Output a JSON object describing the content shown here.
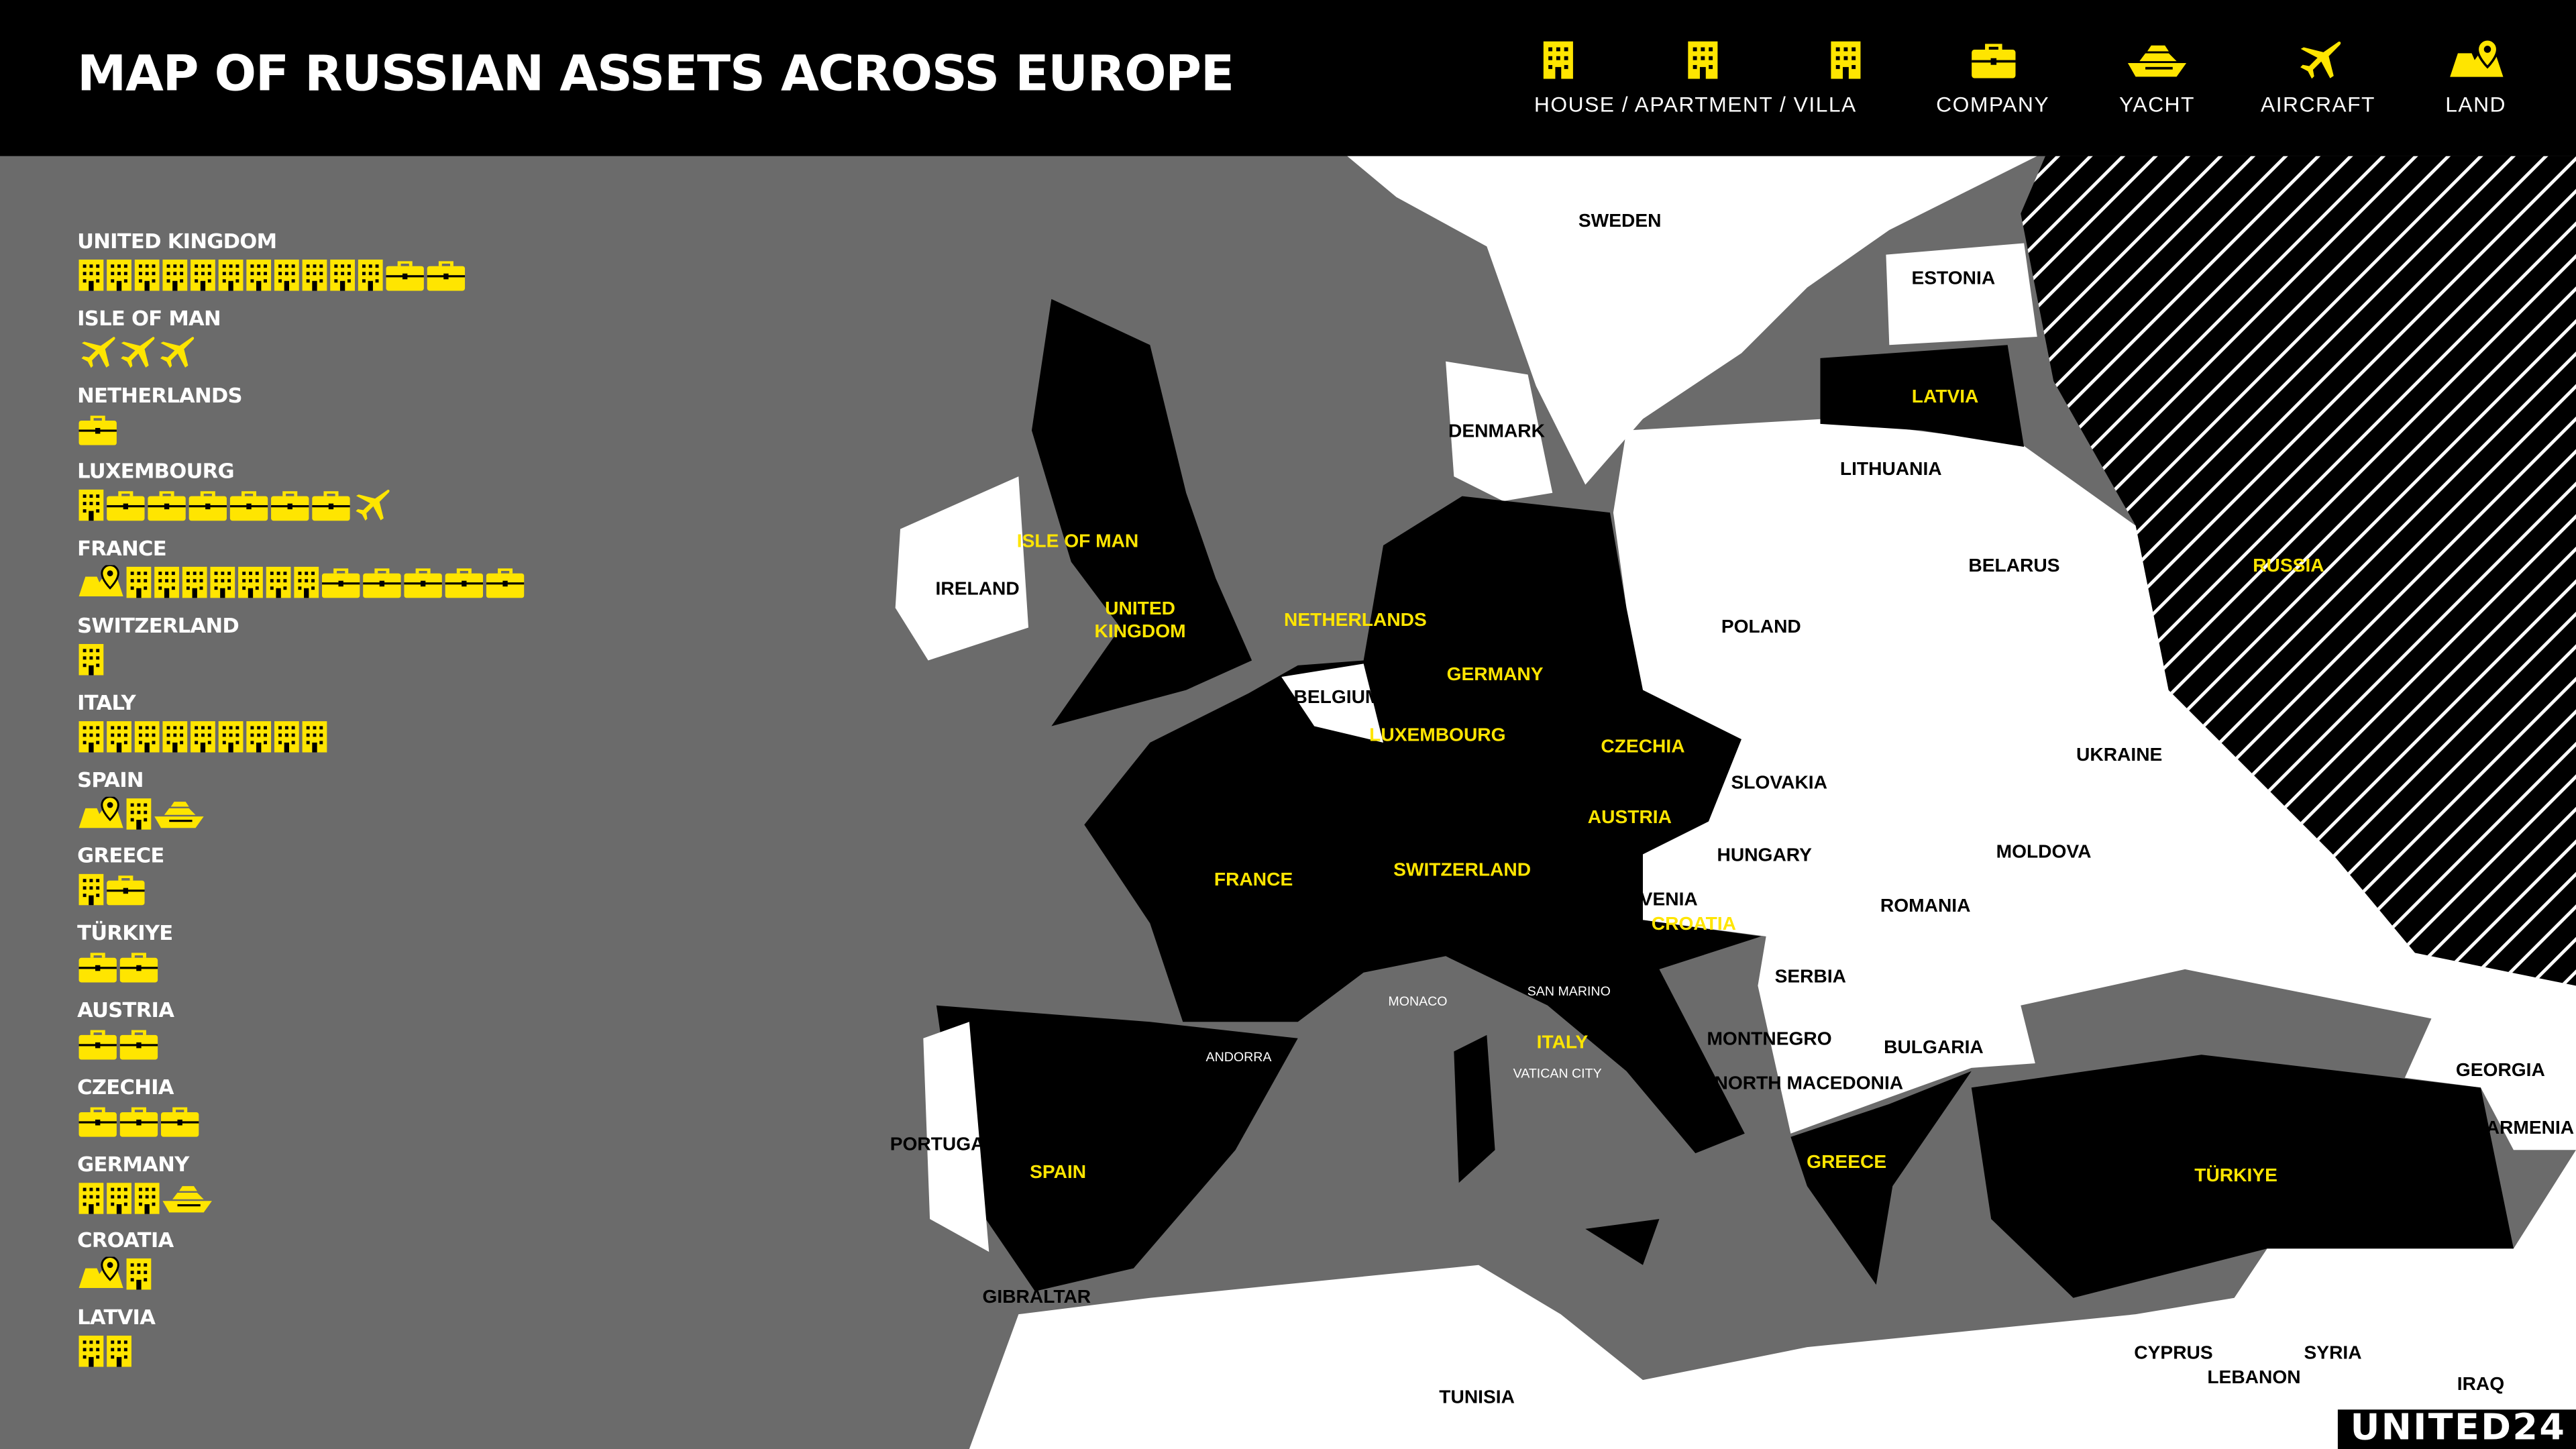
{
  "header": {
    "title": "MAP OF RUSSIAN ASSETS ACROSS EUROPE",
    "legend": [
      "HOUSE / APARTMENT / VILLA",
      "COMPANY",
      "YACHT",
      "AIRCRAFT",
      "LAND"
    ]
  },
  "countries": [
    {
      "name": "UNITED KINGDOM",
      "counts": [
        11,
        2,
        0,
        0,
        0
      ]
    },
    {
      "name": "ISLE OF MAN",
      "counts": [
        0,
        0,
        0,
        3,
        0
      ]
    },
    {
      "name": "NETHERLANDS",
      "counts": [
        0,
        1,
        0,
        0,
        0
      ]
    },
    {
      "name": "LUXEMBOURG",
      "counts": [
        1,
        6,
        0,
        1,
        0
      ]
    },
    {
      "name": "FRANCE",
      "counts": [
        7,
        5,
        0,
        0,
        1
      ]
    },
    {
      "name": "SWITZERLAND",
      "counts": [
        1,
        0,
        0,
        0,
        0
      ]
    },
    {
      "name": "ITALY",
      "counts": [
        9,
        0,
        0,
        0,
        0
      ]
    },
    {
      "name": "SPAIN",
      "counts": [
        1,
        0,
        1,
        0,
        1
      ]
    },
    {
      "name": "GREECE",
      "counts": [
        1,
        1,
        0,
        0,
        0
      ]
    },
    {
      "name": "TÜRKIYE",
      "counts": [
        0,
        2,
        0,
        0,
        0
      ]
    },
    {
      "name": "AUSTRIA",
      "counts": [
        0,
        2,
        0,
        0,
        0
      ]
    },
    {
      "name": "CZECHIA",
      "counts": [
        0,
        3,
        0,
        0,
        0
      ]
    },
    {
      "name": "GERMANY",
      "counts": [
        3,
        0,
        1,
        0,
        0
      ]
    },
    {
      "name": "CROATIA",
      "counts": [
        1,
        0,
        0,
        0,
        1
      ]
    },
    {
      "name": "LATVIA",
      "counts": [
        2,
        0,
        0,
        0,
        0
      ]
    }
  ],
  "map": {
    "asset_countries": [
      "ISLE OF MAN",
      "UNITED\nKINGDOM",
      "NETHERLANDS",
      "GERMANY",
      "LUXEMBOURG",
      "CZECHIA",
      "AUSTRIA",
      "SWITZERLAND",
      "FRANCE",
      "CROATIA",
      "ITALY",
      "SPAIN",
      "GREECE",
      "TÜRKIYE",
      "LATVIA",
      "RUSSIA"
    ],
    "other_countries": [
      "SWEDEN",
      "ESTONIA",
      "DENMARK",
      "LITHUANIA",
      "IRELAND",
      "BELARUS",
      "POLAND",
      "BELGIUM",
      "SLOVAKIA",
      "UKRAINE",
      "HUNGARY",
      "MOLDOVA",
      "SLOVENIA",
      "ROMANIA",
      "SERBIA",
      "MONTNEGRO",
      "BULGARIA",
      "NORTH MACEDONIA",
      "GEORGIA",
      "ARMENIA",
      "PORTUGAL",
      "GIBRALTAR",
      "CYPRUS",
      "SYRIA",
      "LEBANON",
      "IRAQ",
      "TUNISIA"
    ],
    "microstates": [
      "MONACO",
      "SAN MARINO",
      "VATICAN CITY",
      "ANDORRA"
    ]
  },
  "logo": "UNITED24"
}
